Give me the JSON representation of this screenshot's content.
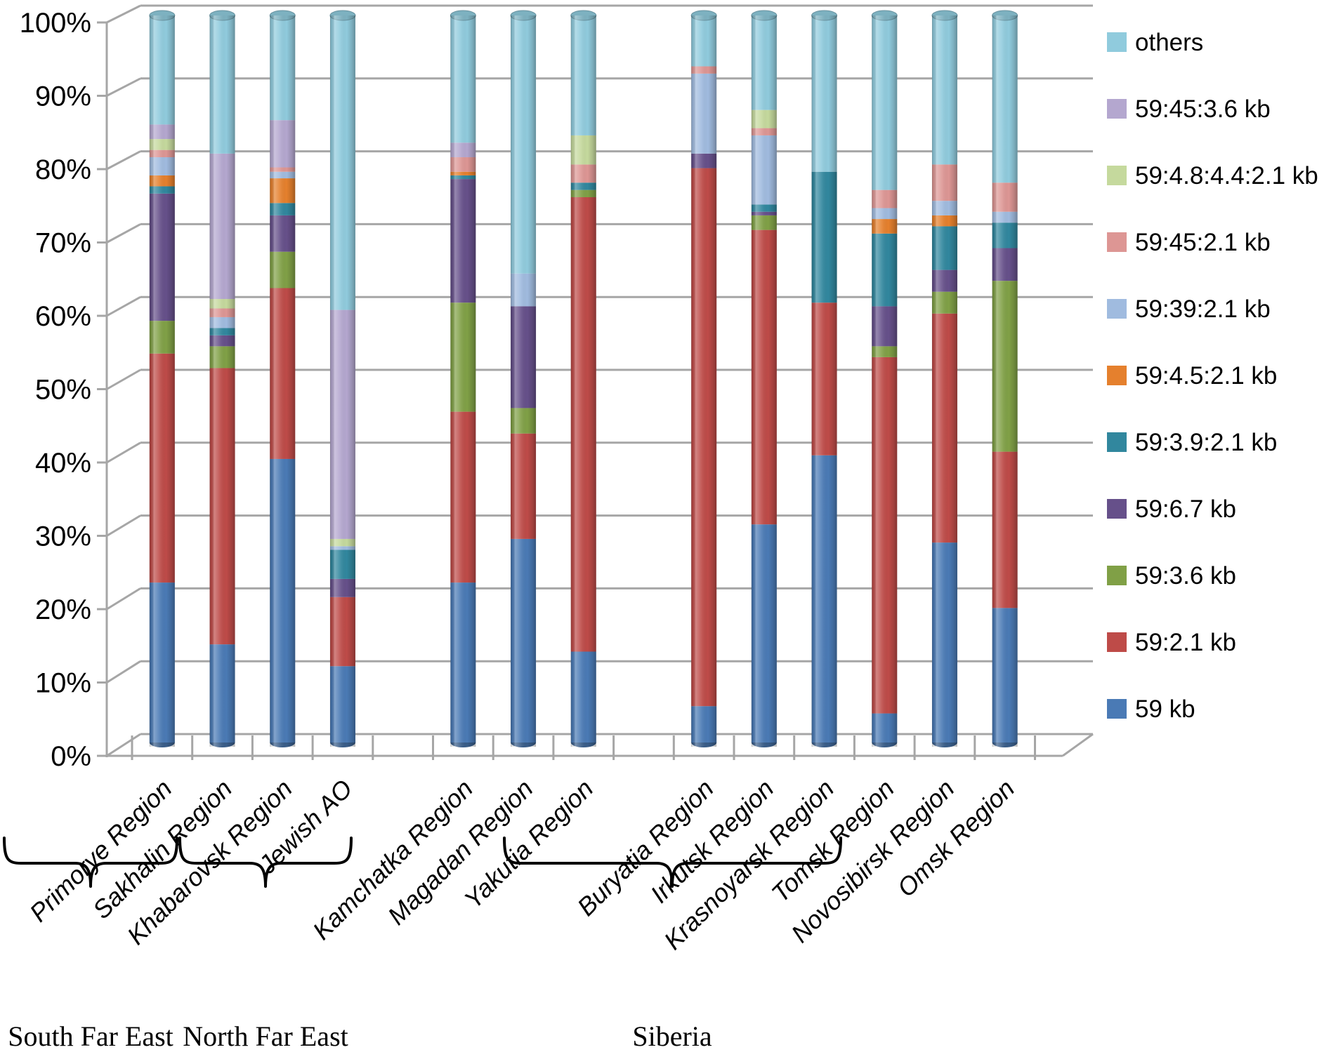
{
  "figure": {
    "background": "#FFFFFF",
    "grid_color": "#A6A6A6",
    "text_color": "#000000"
  },
  "y_axis": {
    "tick_labels": [
      "0%",
      "10%",
      "20%",
      "30%",
      "40%",
      "50%",
      "60%",
      "70%",
      "80%",
      "90%",
      "100%"
    ]
  },
  "groups": [
    {
      "label": "South Far East",
      "categories": [
        "Primorye Region",
        "Sakhalin Region",
        "Khabarovsk Region",
        "Jewish AO"
      ]
    },
    {
      "label": "North Far East",
      "categories": [
        "Kamchatka Region",
        "Magadan Region",
        "Yakutia Region"
      ]
    },
    {
      "label": "Siberia",
      "categories": [
        "Buryatia Region",
        "Irkutsk Region",
        "Krasnoyarsk Region",
        "Tomsk Region",
        "Novosibirsk Region",
        "Omsk Region"
      ]
    }
  ],
  "legend": {
    "position": "right",
    "items_top_to_bottom": [
      "others",
      "59:45:3.6 kb",
      "59:4.8:4.4:2.1 kb",
      "59:45:2.1 kb",
      "59:39:2.1 kb",
      "59:4.5:2.1 kb",
      "59:3.9:2.1 kb",
      "59:6.7 kb",
      "59:3.6 kb",
      "59:2.1 kb",
      "59 kb"
    ]
  },
  "chart_data": {
    "type": "bar",
    "stacked": true,
    "units": "percent",
    "ylim": [
      0,
      100
    ],
    "grid": true,
    "legend_position": "right",
    "bar_style": "3d-cylinder",
    "categories": [
      "Primorye Region",
      "Sakhalin Region",
      "Khabarovsk Region",
      "Jewish AO",
      "Kamchatka Region",
      "Magadan Region",
      "Yakutia Region",
      "Buryatia Region",
      "Irkutsk Region",
      "Krasnoyarsk Region",
      "Tomsk Region",
      "Novosibirsk Region",
      "Omsk Region"
    ],
    "series": [
      {
        "name": "59 kb",
        "color": "#4A7AB5",
        "values": [
          22,
          13.5,
          39,
          10.5,
          22,
          28,
          12.5,
          5,
          30,
          39.5,
          4,
          27.5,
          18.5
        ]
      },
      {
        "name": "59:2.1 kb",
        "color": "#BE4B48",
        "values": [
          31.5,
          38,
          23.5,
          9.5,
          23.5,
          14.5,
          62.5,
          74,
          40.5,
          21,
          49,
          31.5,
          21.5
        ]
      },
      {
        "name": "59:3.6 kb",
        "color": "#80A046",
        "values": [
          4.5,
          3,
          5,
          0,
          15,
          3.5,
          1,
          0,
          2,
          0,
          1.5,
          3,
          23.5
        ]
      },
      {
        "name": "59:6.7 kb",
        "color": "#66508A",
        "values": [
          17.5,
          1.5,
          5,
          2.5,
          17,
          14,
          0,
          2,
          0.5,
          0,
          5.5,
          3,
          4.5
        ]
      },
      {
        "name": "59:3.9:2.1 kb",
        "color": "#31879E",
        "values": [
          1,
          1,
          1.7,
          4,
          0.5,
          0,
          1,
          0,
          1,
          18,
          10,
          6,
          3.5
        ]
      },
      {
        "name": "59:4.5:2.1 kb",
        "color": "#E5802D",
        "values": [
          1.5,
          0,
          3.4,
          0,
          0.5,
          0,
          0,
          0,
          0,
          0,
          2,
          1.5,
          0
        ]
      },
      {
        "name": "59:39:2.1 kb",
        "color": "#A0BBDF",
        "values": [
          2.5,
          1.5,
          0.9,
          0.5,
          0,
          4.5,
          0,
          11,
          9.5,
          0,
          1.5,
          2,
          1.5
        ]
      },
      {
        "name": "59:45:2.1 kb",
        "color": "#DD9694",
        "values": [
          1,
          1.2,
          0.6,
          0,
          2,
          0,
          2.5,
          1,
          1,
          0,
          2.5,
          5,
          4
        ]
      },
      {
        "name": "59:4.8:4.4:2.1 kb",
        "color": "#C5D99D",
        "values": [
          1.5,
          1.3,
          0,
          1,
          0,
          0,
          4,
          0,
          2.5,
          0,
          0,
          0,
          0
        ]
      },
      {
        "name": "59:45:3.6 kb",
        "color": "#B4A7CF",
        "values": [
          2,
          20,
          6.5,
          31.5,
          2,
          0,
          0,
          0,
          0,
          0,
          0,
          0,
          0
        ]
      },
      {
        "name": "others",
        "color": "#90CBDD",
        "values": [
          15,
          19,
          14.4,
          40.5,
          17.5,
          35.5,
          16.5,
          7,
          13,
          21.5,
          24,
          20.5,
          23
        ]
      }
    ],
    "series_order_note": "listed bottom-to-top of the stack; legend shows reverse order"
  }
}
